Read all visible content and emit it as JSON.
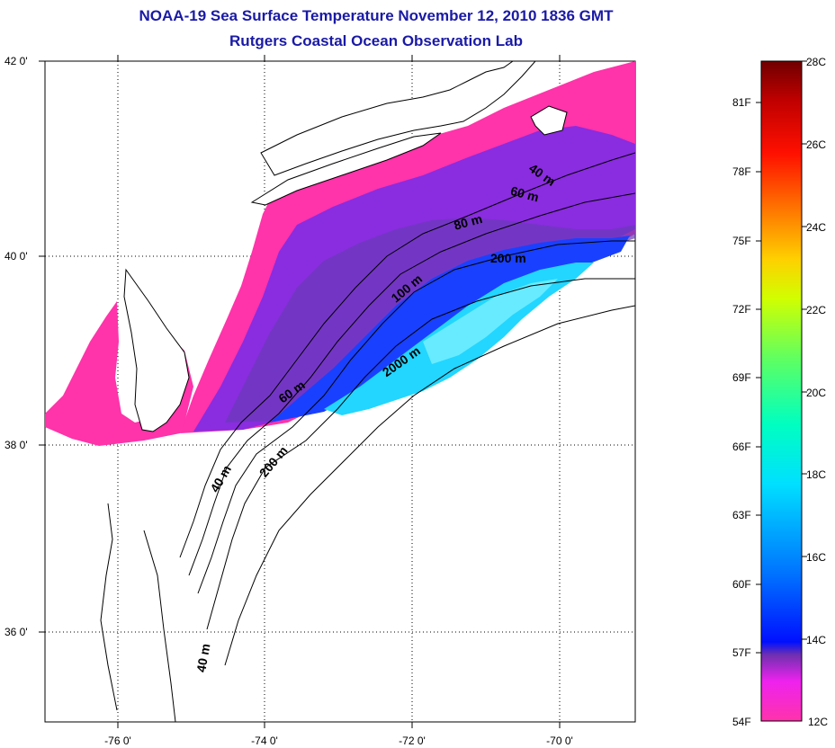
{
  "title_line1": "NOAA-19 Sea Surface Temperature November 12, 2010 1836 GMT",
  "title_line2": "Rutgers Coastal Ocean Observation Lab",
  "map": {
    "lat_ticks": [
      "42 0'",
      "40 0'",
      "38 0'",
      "36 0'"
    ],
    "lon_ticks": [
      "-76 0'",
      "-74 0'",
      "-72 0'",
      "-70 0'"
    ],
    "contour_labels": [
      "40 m",
      "60 m",
      "80 m",
      "200 m",
      "100 m",
      "2000 m",
      "60 m",
      "200 m",
      "40 m",
      "40 m"
    ]
  },
  "colorbar": {
    "celsius": [
      "28C",
      "26C",
      "24C",
      "22C",
      "20C",
      "18C",
      "16C",
      "14C",
      "12C"
    ],
    "fahrenheit": [
      "81F",
      "78F",
      "75F",
      "72F",
      "69F",
      "66F",
      "63F",
      "60F",
      "57F",
      "54F"
    ],
    "colors": [
      "#ff33aa",
      "#ee22ee",
      "#7030b0",
      "#0010ff",
      "#0070ff",
      "#00d0ff",
      "#00ffd0",
      "#60ff60",
      "#d0ff00",
      "#ffd000",
      "#ff7000",
      "#ff1000",
      "#c00000",
      "#700000"
    ]
  }
}
